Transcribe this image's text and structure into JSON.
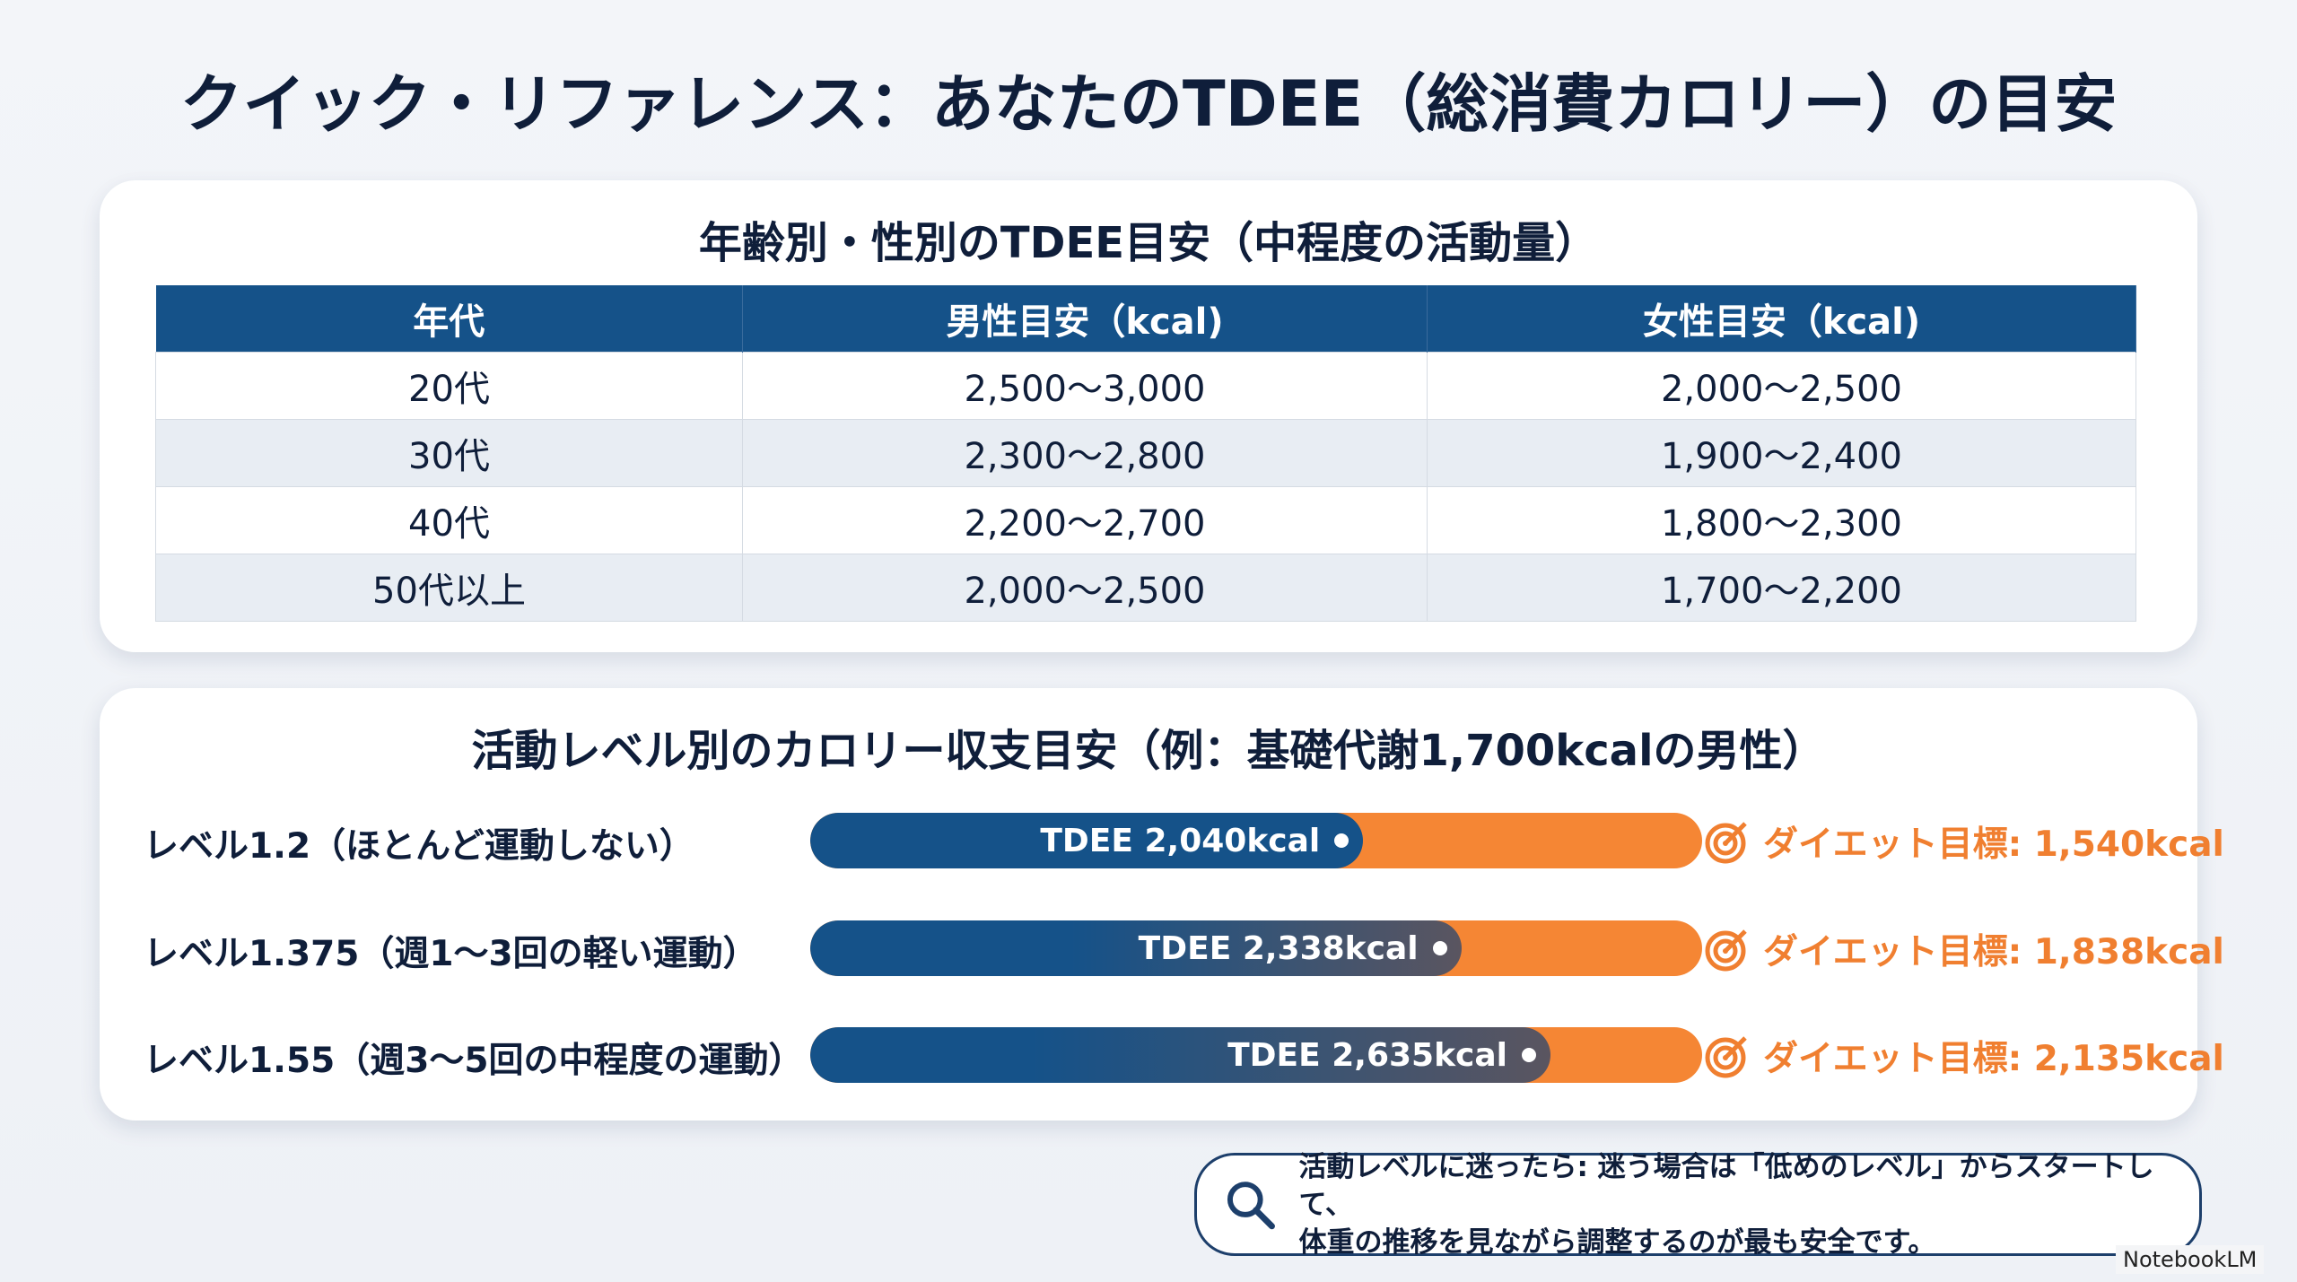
{
  "title": "クイック・リファレンス：あなたのTDEE（総消費カロリー）の目安",
  "table_section": {
    "title": "年齢別・性別のTDEE目安（中程度の活動量）",
    "headers": [
      "年代",
      "男性目安（kcal)",
      "女性目安（kcal)"
    ],
    "rows": [
      [
        "20代",
        "2,500〜3,000",
        "2,000〜2,500"
      ],
      [
        "30代",
        "2,300〜2,800",
        "1,900〜2,400"
      ],
      [
        "40代",
        "2,200〜2,700",
        "1,800〜2,300"
      ],
      [
        "50代以上",
        "2,000〜2,500",
        "1,700〜2,200"
      ]
    ]
  },
  "activity_section": {
    "title": "活動レベル別のカロリー収支目安（例：基礎代謝1,700kcalの男性）",
    "levels": [
      {
        "label": "レベル1.2（ほとんど運動しない）",
        "tdee": "TDEE 2,040kcal",
        "goal": "ダイエット目標: 1,540kcal",
        "fill_pct": 62
      },
      {
        "label": "レベル1.375（週1〜3回の軽い運動）",
        "tdee": "TDEE 2,338kcal",
        "goal": "ダイエット目標: 1,838kcal",
        "fill_pct": 73
      },
      {
        "label": "レベル1.55（週3〜5回の中程度の運動）",
        "tdee": "TDEE 2,635kcal",
        "goal": "ダイエット目標: 2,135kcal",
        "fill_pct": 83
      }
    ],
    "icon": "target-icon"
  },
  "callout": {
    "icon": "search-icon",
    "line1": "活動レベルに迷ったら: 迷う場合は「低めのレベル」からスタートして、",
    "line2": "体重の推移を見ながら調整するのが最も安全です。"
  },
  "watermark": "NotebookLM",
  "colors": {
    "navy": "#155289",
    "orange": "#f58634",
    "text": "#0f1e3a"
  }
}
